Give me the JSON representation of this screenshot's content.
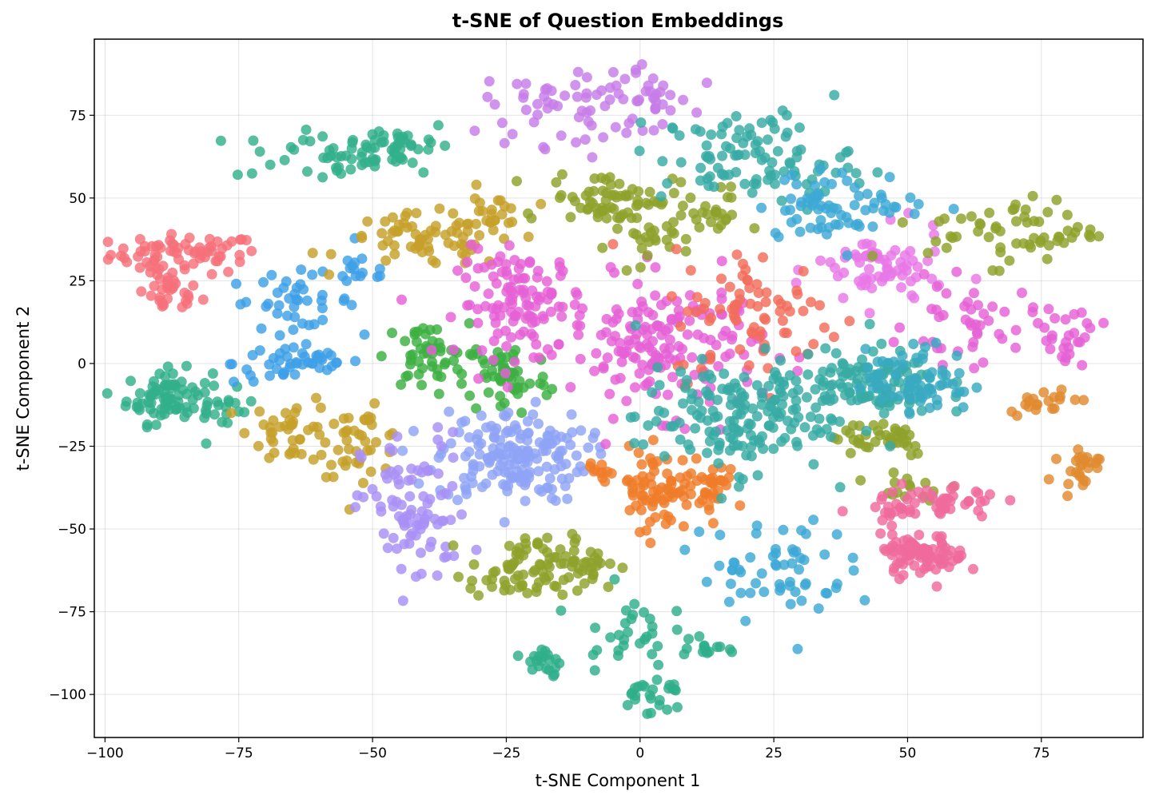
{
  "chart_data": {
    "type": "scatter",
    "title": "t-SNE of Question Embeddings",
    "xlabel": "t-SNE Component 1",
    "ylabel": "t-SNE Component 2",
    "xlim": [
      -102,
      94
    ],
    "ylim": [
      -113,
      98
    ],
    "xticks": [
      -100,
      -75,
      -50,
      -25,
      0,
      25,
      50,
      75
    ],
    "yticks": [
      -100,
      -75,
      -50,
      -25,
      0,
      25,
      50,
      75
    ],
    "xtick_labels": [
      "−100",
      "−75",
      "−50",
      "−25",
      "0",
      "25",
      "50",
      "75"
    ],
    "ytick_labels": [
      "−100",
      "−75",
      "−50",
      "−25",
      "0",
      "25",
      "50",
      "75"
    ],
    "grid": true,
    "legend": "none",
    "clusters": [
      {
        "color": "#f5707a",
        "cx": -85,
        "cy": 33,
        "sx": 7,
        "sy": 3,
        "n": 70
      },
      {
        "color": "#f5707a",
        "cx": -88,
        "cy": 21,
        "sx": 3,
        "sy": 3,
        "n": 30
      },
      {
        "color": "#32b08a",
        "cx": -60,
        "cy": 63,
        "sx": 8,
        "sy": 4,
        "n": 40
      },
      {
        "color": "#32b08a",
        "cx": -45,
        "cy": 66,
        "sx": 5,
        "sy": 4,
        "n": 40
      },
      {
        "color": "#32b08a",
        "cx": -88,
        "cy": -10,
        "sx": 4,
        "sy": 4,
        "n": 80
      },
      {
        "color": "#32b08a",
        "cx": -78,
        "cy": -14,
        "sx": 3,
        "sy": 3,
        "n": 15
      },
      {
        "color": "#3ea0e6",
        "cx": -65,
        "cy": 19,
        "sx": 6,
        "sy": 4,
        "n": 40
      },
      {
        "color": "#3ea0e6",
        "cx": -64,
        "cy": 0,
        "sx": 6,
        "sy": 3,
        "n": 45
      },
      {
        "color": "#3ea0e6",
        "cx": -52,
        "cy": 28,
        "sx": 3,
        "sy": 3,
        "n": 15
      },
      {
        "color": "#c6a02a",
        "cx": -40,
        "cy": 37,
        "sx": 8,
        "sy": 4,
        "n": 70
      },
      {
        "color": "#c6a02a",
        "cx": -65,
        "cy": -20,
        "sx": 4,
        "sy": 5,
        "n": 40
      },
      {
        "color": "#c6a02a",
        "cx": -52,
        "cy": -24,
        "sx": 4,
        "sy": 5,
        "n": 40
      },
      {
        "color": "#c6a02a",
        "cx": -28,
        "cy": 45,
        "sx": 3,
        "sy": 4,
        "n": 20
      },
      {
        "color": "#3cb041",
        "cx": -40,
        "cy": 2,
        "sx": 4,
        "sy": 5,
        "n": 50
      },
      {
        "color": "#3cb041",
        "cx": -25,
        "cy": -4,
        "sx": 4,
        "sy": 6,
        "n": 55
      },
      {
        "color": "#8fa3f5",
        "cx": -24,
        "cy": -28,
        "sx": 7,
        "sy": 7,
        "n": 170
      },
      {
        "color": "#a890f5",
        "cx": -42,
        "cy": -45,
        "sx": 5,
        "sy": 12,
        "n": 90
      },
      {
        "color": "#c77de8",
        "cx": -13,
        "cy": 78,
        "sx": 8,
        "sy": 6,
        "n": 60
      },
      {
        "color": "#c77de8",
        "cx": 2,
        "cy": 80,
        "sx": 4,
        "sy": 4,
        "n": 25
      },
      {
        "color": "#e560d6",
        "cx": -22,
        "cy": 18,
        "sx": 6,
        "sy": 8,
        "n": 120
      },
      {
        "color": "#e560d6",
        "cx": 5,
        "cy": 5,
        "sx": 9,
        "sy": 10,
        "n": 160
      },
      {
        "color": "#e877e8",
        "cx": 45,
        "cy": 28,
        "sx": 6,
        "sy": 6,
        "n": 70
      },
      {
        "color": "#e560d6",
        "cx": 62,
        "cy": 12,
        "sx": 6,
        "sy": 6,
        "n": 45
      },
      {
        "color": "#e560d6",
        "cx": 80,
        "cy": 8,
        "sx": 3,
        "sy": 5,
        "n": 25
      },
      {
        "color": "#8fa12b",
        "cx": -5,
        "cy": 50,
        "sx": 6,
        "sy": 4,
        "n": 70
      },
      {
        "color": "#8fa12b",
        "cx": 0,
        "cy": 35,
        "sx": 3,
        "sy": 4,
        "n": 20
      },
      {
        "color": "#8fa12b",
        "cx": 13,
        "cy": 45,
        "sx": 3,
        "sy": 4,
        "n": 25
      },
      {
        "color": "#8fa12b",
        "cx": -22,
        "cy": -63,
        "sx": 5,
        "sy": 5,
        "n": 70
      },
      {
        "color": "#8fa12b",
        "cx": -10,
        "cy": -60,
        "sx": 3,
        "sy": 4,
        "n": 30
      },
      {
        "color": "#8fa12b",
        "cx": 70,
        "cy": 40,
        "sx": 8,
        "sy": 5,
        "n": 60
      },
      {
        "color": "#8fa12b",
        "cx": 45,
        "cy": -22,
        "sx": 5,
        "sy": 3,
        "n": 40
      },
      {
        "color": "#8fa12b",
        "cx": 50,
        "cy": -38,
        "sx": 5,
        "sy": 3,
        "n": 15
      },
      {
        "color": "#f26c5a",
        "cx": 22,
        "cy": 15,
        "sx": 8,
        "sy": 10,
        "n": 80
      },
      {
        "color": "#ef7d2a",
        "cx": 5,
        "cy": -38,
        "sx": 5,
        "sy": 6,
        "n": 90
      },
      {
        "color": "#ef7d2a",
        "cx": -8,
        "cy": -32,
        "sx": 2,
        "sy": 2,
        "n": 10
      },
      {
        "color": "#ef7d2a",
        "cx": 14,
        "cy": -36,
        "sx": 2,
        "sy": 3,
        "n": 15
      },
      {
        "color": "#e18a2f",
        "cx": 75,
        "cy": -11,
        "sx": 3,
        "sy": 2,
        "n": 20
      },
      {
        "color": "#e18a2f",
        "cx": 82,
        "cy": -31,
        "sx": 2,
        "sy": 3,
        "n": 25
      },
      {
        "color": "#37aba3",
        "cx": 22,
        "cy": 62,
        "sx": 9,
        "sy": 7,
        "n": 100
      },
      {
        "color": "#37aba3",
        "cx": 17,
        "cy": -17,
        "sx": 9,
        "sy": 8,
        "n": 150
      },
      {
        "color": "#37aba3",
        "cx": 40,
        "cy": -6,
        "sx": 8,
        "sy": 5,
        "n": 120
      },
      {
        "color": "#38a9c1",
        "cx": 52,
        "cy": -5,
        "sx": 5,
        "sy": 5,
        "n": 70
      },
      {
        "color": "#3da8d6",
        "cx": 38,
        "cy": 48,
        "sx": 8,
        "sy": 5,
        "n": 70
      },
      {
        "color": "#3da8d6",
        "cx": 25,
        "cy": -62,
        "sx": 7,
        "sy": 8,
        "n": 60
      },
      {
        "color": "#2eae8a",
        "cx": -3,
        "cy": -80,
        "sx": 4,
        "sy": 6,
        "n": 30
      },
      {
        "color": "#2eae8a",
        "cx": 2,
        "cy": -100,
        "sx": 3,
        "sy": 3,
        "n": 25
      },
      {
        "color": "#2eae8a",
        "cx": -18,
        "cy": -90,
        "sx": 2,
        "sy": 3,
        "n": 20
      },
      {
        "color": "#2eae8a",
        "cx": 12,
        "cy": -86,
        "sx": 2,
        "sy": 2,
        "n": 15
      },
      {
        "color": "#ef6a9c",
        "cx": 53,
        "cy": -58,
        "sx": 4,
        "sy": 3,
        "n": 80
      },
      {
        "color": "#ef6a9c",
        "cx": 55,
        "cy": -42,
        "sx": 6,
        "sy": 3,
        "n": 50
      },
      {
        "color": "#ef6a9c",
        "cx": 48,
        "cy": -45,
        "sx": 2,
        "sy": 1,
        "n": 8
      }
    ]
  }
}
